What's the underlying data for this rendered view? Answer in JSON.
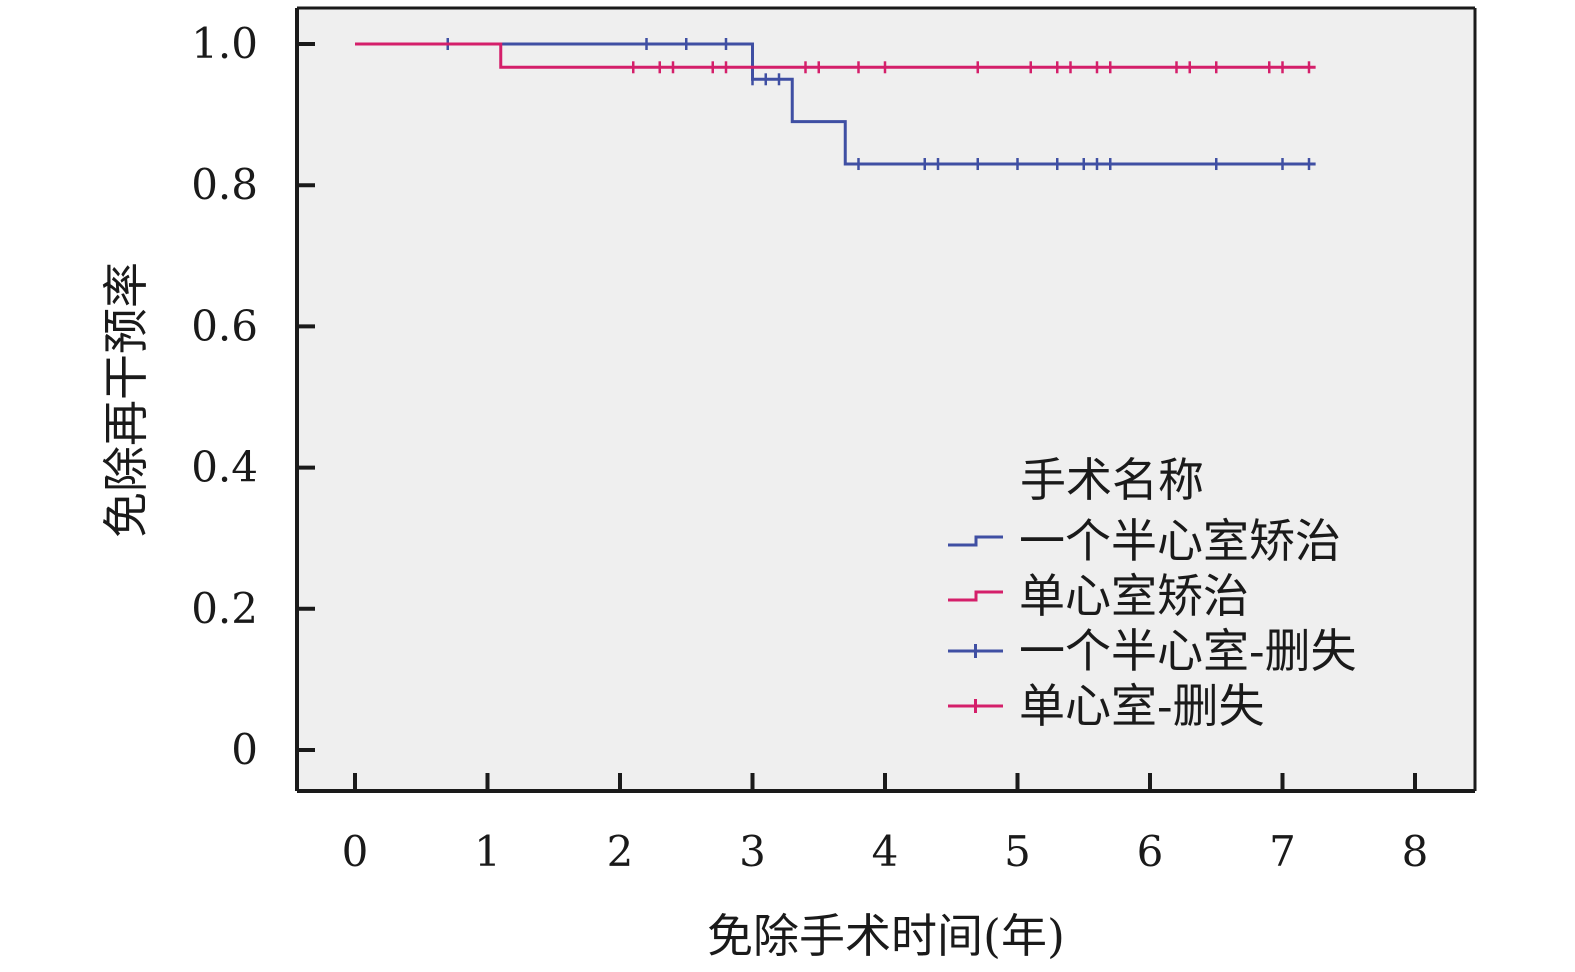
{
  "chart_data": {
    "type": "line",
    "step": true,
    "xlabel": "免除手术时间(年)",
    "ylabel": "免除再干预率",
    "xlim": [
      0,
      8
    ],
    "ylim": [
      0,
      1.0
    ],
    "x_ticks": [
      "0",
      "1",
      "2",
      "3",
      "4",
      "5",
      "6",
      "7",
      "8"
    ],
    "y_ticks": [
      "0",
      "0.2",
      "0.4",
      "0.6",
      "0.8",
      "1.0"
    ],
    "x_tick_values": [
      0,
      1,
      2,
      3,
      4,
      5,
      6,
      7,
      8
    ],
    "y_tick_values": [
      0,
      0.2,
      0.4,
      0.6,
      0.8,
      1.0
    ],
    "grid": false,
    "background": "#efefef",
    "legend": {
      "title": "手术名称",
      "placement": "bottom-right",
      "entries": [
        {
          "label": "一个半心室矫治",
          "kind": "step",
          "color": "#3f4fa3"
        },
        {
          "label": "单心室矫治",
          "kind": "step",
          "color": "#d41f6a"
        },
        {
          "label": "一个半心室-删失",
          "kind": "censor",
          "color": "#3f4fa3"
        },
        {
          "label": "单心室-删失",
          "kind": "censor",
          "color": "#d41f6a"
        }
      ]
    },
    "series": [
      {
        "name": "一个半心室矫治",
        "color": "#3f4fa3",
        "x": [
          0,
          3.0,
          3.3,
          3.7,
          7.25
        ],
        "y": [
          1.0,
          0.95,
          0.89,
          0.83,
          0.83
        ],
        "censored": [
          {
            "x": 0.7,
            "y": 1.0
          },
          {
            "x": 2.2,
            "y": 1.0
          },
          {
            "x": 2.5,
            "y": 1.0
          },
          {
            "x": 2.8,
            "y": 1.0
          },
          {
            "x": 3.0,
            "y": 0.95
          },
          {
            "x": 3.1,
            "y": 0.95
          },
          {
            "x": 3.2,
            "y": 0.95
          },
          {
            "x": 3.8,
            "y": 0.83
          },
          {
            "x": 4.3,
            "y": 0.83
          },
          {
            "x": 4.4,
            "y": 0.83
          },
          {
            "x": 4.7,
            "y": 0.83
          },
          {
            "x": 5.0,
            "y": 0.83
          },
          {
            "x": 5.3,
            "y": 0.83
          },
          {
            "x": 5.5,
            "y": 0.83
          },
          {
            "x": 5.6,
            "y": 0.83
          },
          {
            "x": 5.7,
            "y": 0.83
          },
          {
            "x": 6.5,
            "y": 0.83
          },
          {
            "x": 7.0,
            "y": 0.83
          },
          {
            "x": 7.2,
            "y": 0.83
          }
        ]
      },
      {
        "name": "单心室矫治",
        "color": "#d41f6a",
        "x": [
          0,
          1.1,
          7.25
        ],
        "y": [
          1.0,
          0.967,
          0.967
        ],
        "censored": [
          {
            "x": 2.1,
            "y": 0.967
          },
          {
            "x": 2.3,
            "y": 0.967
          },
          {
            "x": 2.4,
            "y": 0.967
          },
          {
            "x": 2.7,
            "y": 0.967
          },
          {
            "x": 2.8,
            "y": 0.967
          },
          {
            "x": 3.4,
            "y": 0.967
          },
          {
            "x": 3.5,
            "y": 0.967
          },
          {
            "x": 3.8,
            "y": 0.967
          },
          {
            "x": 4.0,
            "y": 0.967
          },
          {
            "x": 4.7,
            "y": 0.967
          },
          {
            "x": 5.1,
            "y": 0.967
          },
          {
            "x": 5.3,
            "y": 0.967
          },
          {
            "x": 5.4,
            "y": 0.967
          },
          {
            "x": 5.6,
            "y": 0.967
          },
          {
            "x": 5.7,
            "y": 0.967
          },
          {
            "x": 6.2,
            "y": 0.967
          },
          {
            "x": 6.3,
            "y": 0.967
          },
          {
            "x": 6.5,
            "y": 0.967
          },
          {
            "x": 6.9,
            "y": 0.967
          },
          {
            "x": 7.0,
            "y": 0.967
          },
          {
            "x": 7.2,
            "y": 0.967
          }
        ]
      }
    ]
  }
}
